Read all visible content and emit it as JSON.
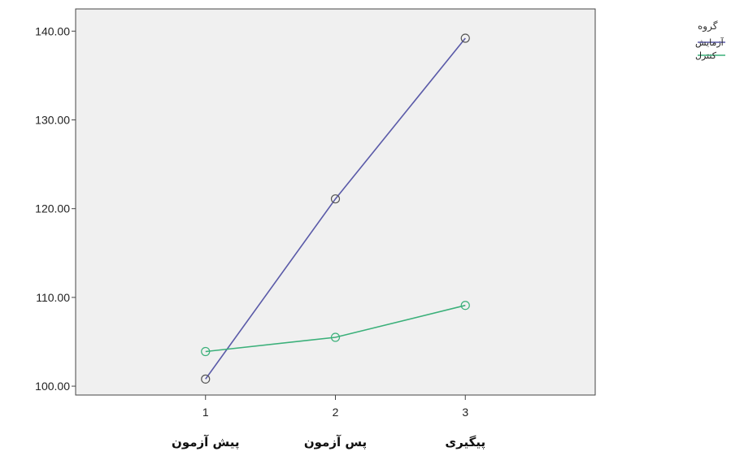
{
  "chart_data": {
    "type": "line",
    "x": [
      1,
      2,
      3
    ],
    "categories": [
      "پیش آزمون",
      "پس آزمون",
      "پیگیری"
    ],
    "yticks": [
      "100.00",
      "110.00",
      "120.00",
      "130.00",
      "140.00"
    ],
    "ylim": [
      99,
      142.5
    ],
    "grid": false,
    "legend_position": "top-right",
    "legend_title": "گروه",
    "series": [
      {
        "name": "آزمایش",
        "color": "#5a5aa8",
        "values": [
          100.8,
          121.1,
          139.2
        ]
      },
      {
        "name": "کنترل",
        "color": "#3bb07a",
        "values": [
          103.9,
          105.5,
          109.1
        ]
      }
    ]
  }
}
